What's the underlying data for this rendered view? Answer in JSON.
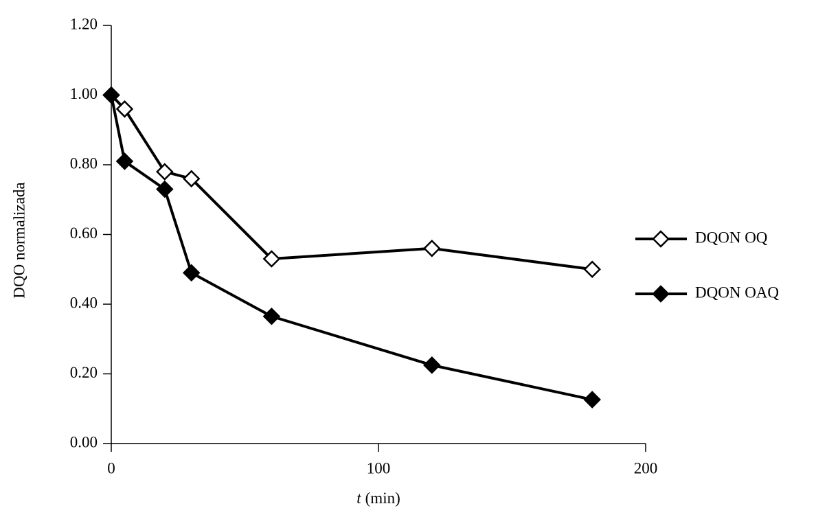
{
  "chart_data": {
    "type": "line",
    "y_label": "DQO normalizada",
    "x_label_var": "t",
    "x_label_unit": "(min)",
    "x": [
      0,
      5,
      20,
      30,
      60,
      120,
      180
    ],
    "series": [
      {
        "name": "DQON OQ",
        "color": "#000000",
        "marker": "open-diamond",
        "values": [
          1.0,
          0.96,
          0.78,
          0.76,
          0.53,
          0.56,
          0.5
        ]
      },
      {
        "name": "DQON OAQ",
        "color": "#000000",
        "marker": "filled-diamond",
        "values": [
          1.0,
          0.81,
          0.73,
          0.49,
          0.365,
          0.225,
          0.126
        ]
      }
    ],
    "xlim": [
      0,
      200
    ],
    "xticks": [
      0,
      100,
      200
    ],
    "ylim": [
      0,
      1.2
    ],
    "yticks": [
      {
        "value": 0,
        "label": "0.00"
      },
      {
        "value": 0.2,
        "label": "0.20"
      },
      {
        "value": 0.4,
        "label": "0.40"
      },
      {
        "value": 0.6,
        "label": "0.60"
      },
      {
        "value": 0.8,
        "label": "0.80"
      },
      {
        "value": 1.0,
        "label": "1.00"
      },
      {
        "value": 1.2,
        "label": "1.20"
      }
    ],
    "grid": false,
    "legend": "right"
  }
}
